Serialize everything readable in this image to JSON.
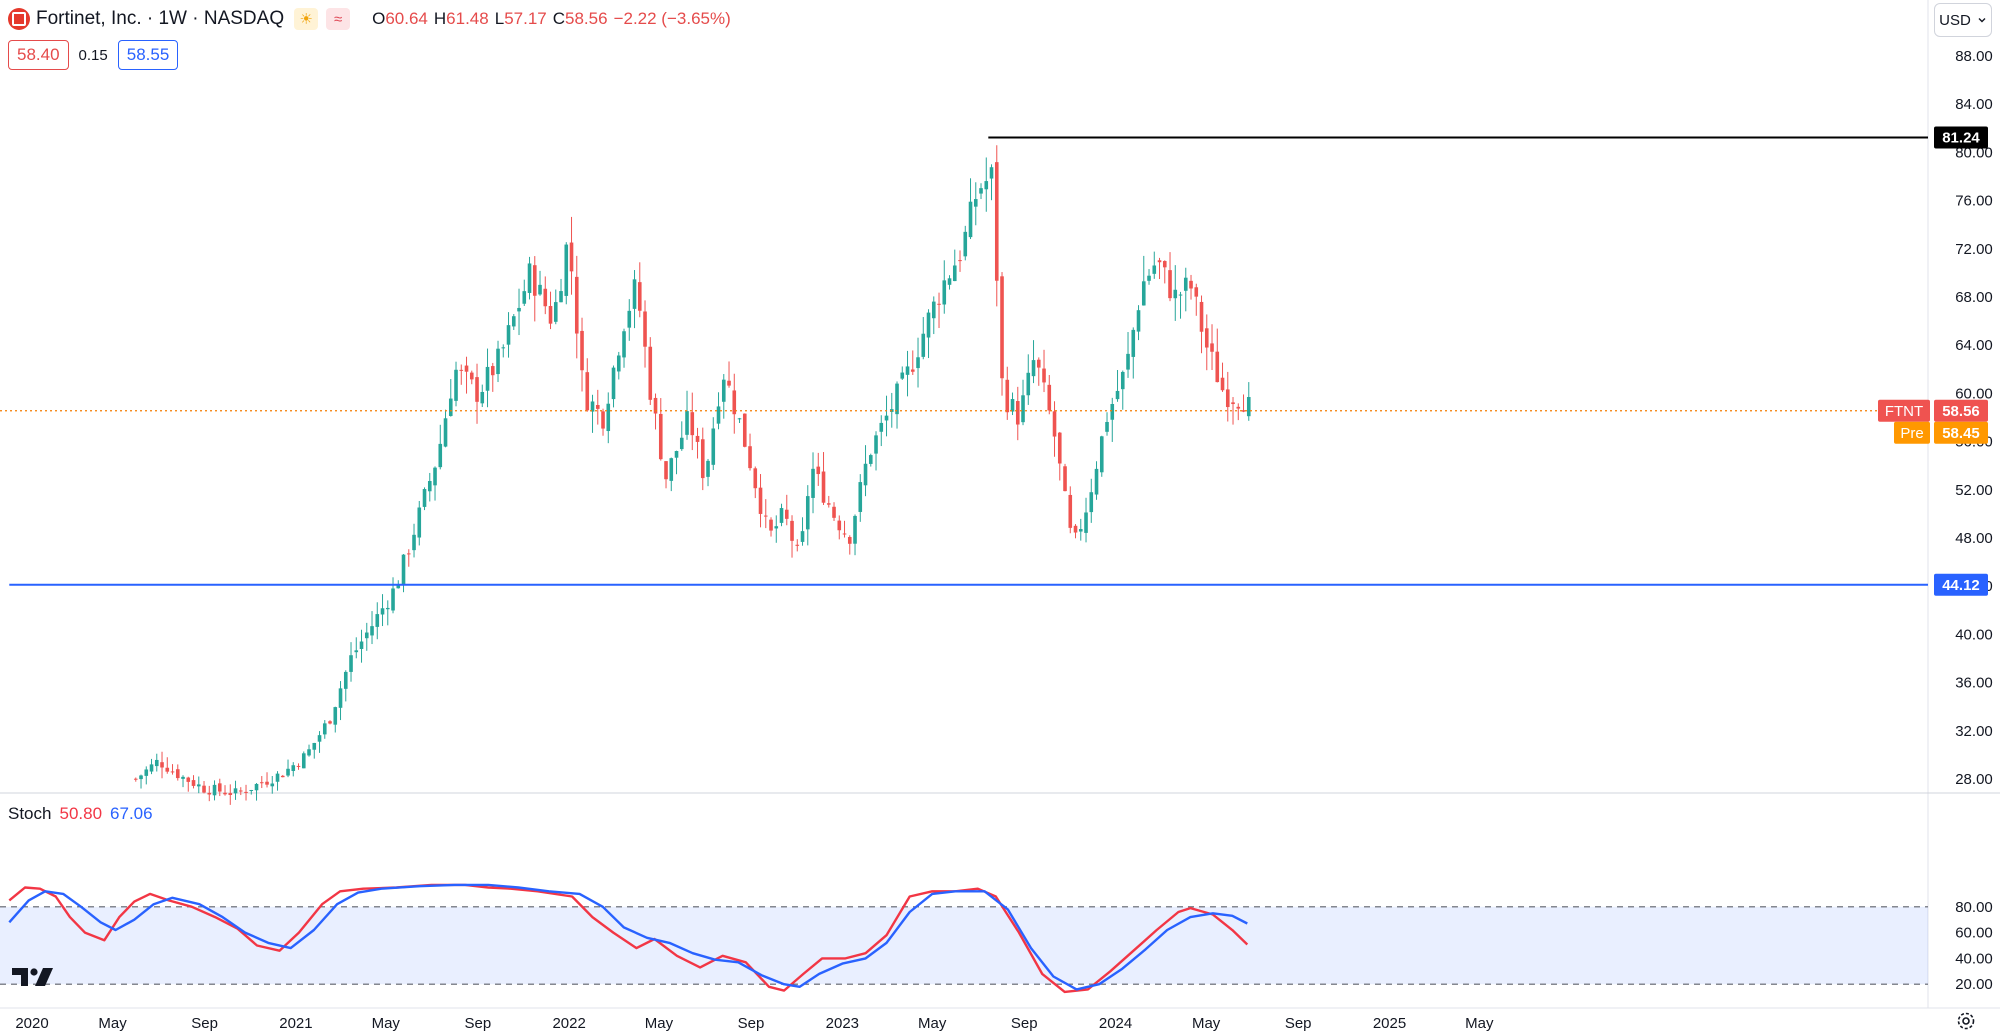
{
  "header": {
    "symbol_title": "Fortinet, Inc. · 1W · NASDAQ",
    "ohlc": [
      {
        "key": "O",
        "value": "60.64"
      },
      {
        "key": "H",
        "value": "61.48"
      },
      {
        "key": "L",
        "value": "57.17"
      },
      {
        "key": "C",
        "value": "58.56"
      },
      {
        "key": "",
        "value": "−2.22 (−3.65%)"
      }
    ],
    "sun_icon": "☀",
    "wave_icon": "≈",
    "bid": "58.40",
    "spread": "0.15",
    "ask": "58.55"
  },
  "currency": {
    "label": "USD",
    "icon": "chevron-down-icon"
  },
  "colors": {
    "up": "#26a69a",
    "down": "#ef5350",
    "support": "#2962ff",
    "resistance": "#000000",
    "stoch_k": "#f23645",
    "stoch_d": "#2962ff",
    "last_price": "#f57c00"
  },
  "chart_data": [
    {
      "type": "candlestick",
      "interval": "1W",
      "ylim": [
        26,
        90
      ],
      "y_ticks": [
        "28.00",
        "32.00",
        "36.00",
        "40.00",
        "44.00",
        "48.00",
        "52.00",
        "56.00",
        "60.00",
        "64.00",
        "68.00",
        "72.00",
        "76.00",
        "80.00",
        "84.00",
        "88.00"
      ],
      "x_ticks": [
        "2020",
        "May",
        "Sep",
        "2021",
        "May",
        "Sep",
        "2022",
        "May",
        "Sep",
        "2023",
        "May",
        "Sep",
        "2024",
        "May",
        "Sep",
        "2025",
        "May"
      ],
      "price_path": [
        {
          "date": "2020-06-01",
          "close": 28
        },
        {
          "date": "2020-07-01",
          "close": 29.5
        },
        {
          "date": "2020-08-01",
          "close": 28.2
        },
        {
          "date": "2020-09-01",
          "close": 27.2
        },
        {
          "date": "2020-10-15",
          "close": 26.8
        },
        {
          "date": "2020-12-15",
          "close": 28.5
        },
        {
          "date": "2021-01-15",
          "close": 30
        },
        {
          "date": "2021-02-15",
          "close": 33
        },
        {
          "date": "2021-03-15",
          "close": 38
        },
        {
          "date": "2021-04-15",
          "close": 41
        },
        {
          "date": "2021-05-15",
          "close": 44
        },
        {
          "date": "2021-06-15",
          "close": 50
        },
        {
          "date": "2021-07-10",
          "close": 55
        },
        {
          "date": "2021-08-01",
          "close": 62
        },
        {
          "date": "2021-09-01",
          "close": 60
        },
        {
          "date": "2021-10-01",
          "close": 63
        },
        {
          "date": "2021-11-10",
          "close": 70
        },
        {
          "date": "2021-12-10",
          "close": 66
        },
        {
          "date": "2021-12-31",
          "close": 73
        },
        {
          "date": "2022-01-20",
          "close": 60
        },
        {
          "date": "2022-02-15",
          "close": 58
        },
        {
          "date": "2022-03-15",
          "close": 66
        },
        {
          "date": "2022-04-01",
          "close": 69
        },
        {
          "date": "2022-04-20",
          "close": 60
        },
        {
          "date": "2022-05-10",
          "close": 53
        },
        {
          "date": "2022-06-10",
          "close": 58
        },
        {
          "date": "2022-07-01",
          "close": 53
        },
        {
          "date": "2022-07-25",
          "close": 62
        },
        {
          "date": "2022-08-15",
          "close": 58
        },
        {
          "date": "2022-09-01",
          "close": 54
        },
        {
          "date": "2022-09-25",
          "close": 48
        },
        {
          "date": "2022-10-15",
          "close": 50
        },
        {
          "date": "2022-11-05",
          "close": 46
        },
        {
          "date": "2022-11-20",
          "close": 54
        },
        {
          "date": "2022-12-20",
          "close": 50
        },
        {
          "date": "2023-01-10",
          "close": 48
        },
        {
          "date": "2023-02-05",
          "close": 55
        },
        {
          "date": "2023-03-01",
          "close": 58
        },
        {
          "date": "2023-04-01",
          "close": 62
        },
        {
          "date": "2023-04-25",
          "close": 66
        },
        {
          "date": "2023-05-15",
          "close": 69
        },
        {
          "date": "2023-06-10",
          "close": 72
        },
        {
          "date": "2023-07-01",
          "close": 77
        },
        {
          "date": "2023-07-20",
          "close": 78
        },
        {
          "date": "2023-08-03",
          "close": 60
        },
        {
          "date": "2023-08-25",
          "close": 58
        },
        {
          "date": "2023-09-15",
          "close": 63
        },
        {
          "date": "2023-10-10",
          "close": 57
        },
        {
          "date": "2023-11-05",
          "close": 47
        },
        {
          "date": "2023-11-25",
          "close": 51
        },
        {
          "date": "2023-12-20",
          "close": 58
        },
        {
          "date": "2024-01-15",
          "close": 62
        },
        {
          "date": "2024-02-05",
          "close": 69
        },
        {
          "date": "2024-02-25",
          "close": 71
        },
        {
          "date": "2024-03-20",
          "close": 68
        },
        {
          "date": "2024-04-10",
          "close": 69
        },
        {
          "date": "2024-05-01",
          "close": 64
        },
        {
          "date": "2024-05-25",
          "close": 60
        },
        {
          "date": "2024-06-20",
          "close": 59.5
        },
        {
          "date": "2024-07-01",
          "close": 58.56
        }
      ],
      "horizontal_lines": [
        {
          "name": "resistance",
          "value": 81.24,
          "label": "81.24",
          "from": "2023-07-15"
        },
        {
          "name": "support",
          "value": 44.12,
          "label": "44.12",
          "from": "2019-12-15"
        }
      ],
      "last_price": {
        "symbol_label": "FTNT",
        "value": "58.56"
      },
      "premarket": {
        "label": "Pre",
        "value": "58.45"
      }
    },
    {
      "type": "line",
      "title": "Stoch",
      "k_value": "50.80",
      "d_value": "67.06",
      "ylim": [
        0,
        100
      ],
      "y_ticks": [
        "20.00",
        "40.00",
        "60.00",
        "80.00"
      ],
      "band": [
        20,
        80
      ],
      "series": [
        {
          "name": "%K",
          "points": [
            [
              "2019-12-15",
              85
            ],
            [
              "2020-01-05",
              95
            ],
            [
              "2020-01-25",
              94
            ],
            [
              "2020-02-15",
              88
            ],
            [
              "2020-03-05",
              72
            ],
            [
              "2020-03-25",
              60
            ],
            [
              "2020-04-20",
              54
            ],
            [
              "2020-05-10",
              72
            ],
            [
              "2020-05-30",
              84
            ],
            [
              "2020-06-20",
              90
            ],
            [
              "2020-07-15",
              85
            ],
            [
              "2020-08-15",
              80
            ],
            [
              "2020-09-15",
              72
            ],
            [
              "2020-10-15",
              63
            ],
            [
              "2020-11-10",
              50
            ],
            [
              "2020-12-10",
              46
            ],
            [
              "2021-01-05",
              60
            ],
            [
              "2021-02-05",
              82
            ],
            [
              "2021-03-01",
              92
            ],
            [
              "2021-04-01",
              94
            ],
            [
              "2021-05-15",
              95
            ],
            [
              "2021-07-01",
              97
            ],
            [
              "2021-08-15",
              97
            ],
            [
              "2021-09-15",
              95
            ],
            [
              "2021-10-15",
              94
            ],
            [
              "2021-11-20",
              92
            ],
            [
              "2022-01-05",
              88
            ],
            [
              "2022-02-01",
              72
            ],
            [
              "2022-03-01",
              60
            ],
            [
              "2022-04-01",
              48
            ],
            [
              "2022-04-25",
              55
            ],
            [
              "2022-05-25",
              42
            ],
            [
              "2022-06-25",
              33
            ],
            [
              "2022-07-25",
              42
            ],
            [
              "2022-08-25",
              37
            ],
            [
              "2022-09-25",
              18
            ],
            [
              "2022-10-15",
              15
            ],
            [
              "2022-11-10",
              28
            ],
            [
              "2022-12-05",
              40
            ],
            [
              "2023-01-05",
              40
            ],
            [
              "2023-02-01",
              44
            ],
            [
              "2023-03-01",
              58
            ],
            [
              "2023-04-01",
              88
            ],
            [
              "2023-05-01",
              92
            ],
            [
              "2023-06-01",
              92
            ],
            [
              "2023-07-01",
              94
            ],
            [
              "2023-07-25",
              88
            ],
            [
              "2023-08-25",
              60
            ],
            [
              "2023-09-25",
              28
            ],
            [
              "2023-10-25",
              14
            ],
            [
              "2023-11-25",
              16
            ],
            [
              "2023-12-25",
              30
            ],
            [
              "2024-01-25",
              46
            ],
            [
              "2024-02-25",
              62
            ],
            [
              "2024-03-25",
              76
            ],
            [
              "2024-04-10",
              79
            ],
            [
              "2024-05-10",
              74
            ],
            [
              "2024-06-05",
              62
            ],
            [
              "2024-06-25",
              50.8
            ]
          ]
        },
        {
          "name": "%D",
          "points": [
            [
              "2019-12-15",
              68
            ],
            [
              "2020-01-10",
              85
            ],
            [
              "2020-02-01",
              92
            ],
            [
              "2020-02-25",
              90
            ],
            [
              "2020-03-20",
              80
            ],
            [
              "2020-04-15",
              68
            ],
            [
              "2020-05-05",
              62
            ],
            [
              "2020-05-30",
              70
            ],
            [
              "2020-06-25",
              82
            ],
            [
              "2020-07-20",
              87
            ],
            [
              "2020-08-25",
              82
            ],
            [
              "2020-09-25",
              72
            ],
            [
              "2020-10-25",
              60
            ],
            [
              "2020-11-25",
              52
            ],
            [
              "2020-12-25",
              48
            ],
            [
              "2021-01-25",
              62
            ],
            [
              "2021-02-25",
              82
            ],
            [
              "2021-03-25",
              91
            ],
            [
              "2021-04-25",
              94
            ],
            [
              "2021-06-15",
              96
            ],
            [
              "2021-08-01",
              97
            ],
            [
              "2021-09-15",
              97
            ],
            [
              "2021-10-25",
              95
            ],
            [
              "2021-12-05",
              92
            ],
            [
              "2022-01-15",
              90
            ],
            [
              "2022-02-15",
              80
            ],
            [
              "2022-03-15",
              64
            ],
            [
              "2022-04-15",
              56
            ],
            [
              "2022-05-15",
              52
            ],
            [
              "2022-06-15",
              44
            ],
            [
              "2022-07-15",
              39
            ],
            [
              "2022-08-15",
              37
            ],
            [
              "2022-09-15",
              27
            ],
            [
              "2022-10-15",
              20
            ],
            [
              "2022-11-05",
              18
            ],
            [
              "2022-12-01",
              28
            ],
            [
              "2023-01-01",
              36
            ],
            [
              "2023-02-01",
              40
            ],
            [
              "2023-03-01",
              52
            ],
            [
              "2023-04-01",
              76
            ],
            [
              "2023-05-01",
              90
            ],
            [
              "2023-06-01",
              92
            ],
            [
              "2023-07-10",
              92
            ],
            [
              "2023-08-10",
              78
            ],
            [
              "2023-09-10",
              48
            ],
            [
              "2023-10-10",
              26
            ],
            [
              "2023-11-10",
              16
            ],
            [
              "2023-12-10",
              20
            ],
            [
              "2024-01-10",
              32
            ],
            [
              "2024-02-10",
              47
            ],
            [
              "2024-03-10",
              62
            ],
            [
              "2024-04-10",
              72
            ],
            [
              "2024-05-10",
              75
            ],
            [
              "2024-06-05",
              73
            ],
            [
              "2024-06-25",
              67.06
            ]
          ]
        }
      ]
    }
  ]
}
